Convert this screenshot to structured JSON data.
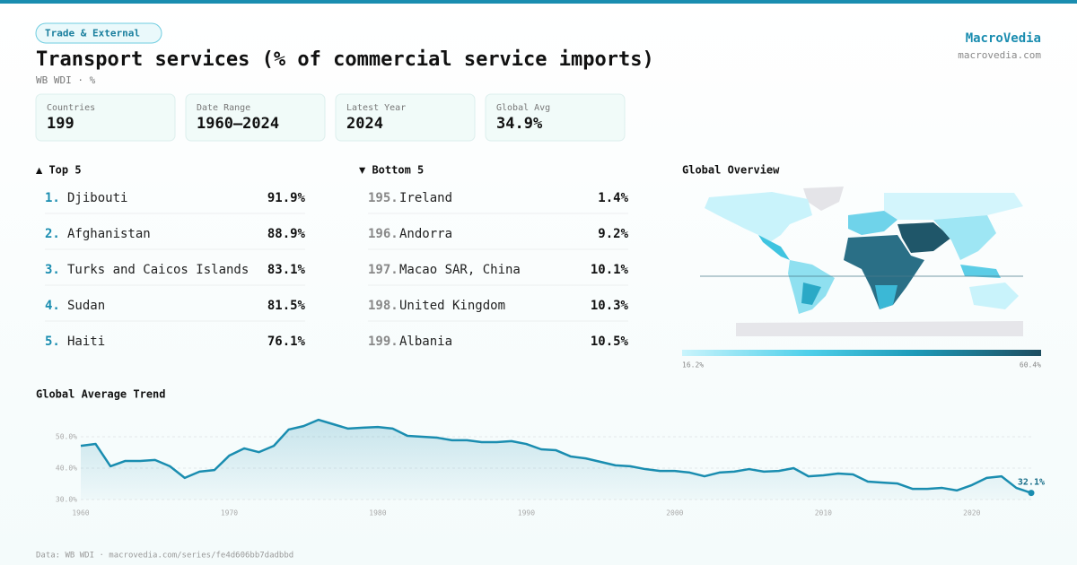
{
  "header": {
    "tag": "Trade & External",
    "title": "Transport services (% of commercial service imports)",
    "subtitle": "WB WDI · %",
    "brand": "MacroVedia",
    "site": "macrovedia.com"
  },
  "stats": [
    {
      "label": "Countries",
      "value": "199"
    },
    {
      "label": "Date Range",
      "value": "1960–2024"
    },
    {
      "label": "Latest Year",
      "value": "2024"
    },
    {
      "label": "Global Avg",
      "value": "34.9%"
    }
  ],
  "top": {
    "title": "▲ Top 5",
    "rows": [
      {
        "rank": "1.",
        "name": "Djibouti",
        "value": "91.9%"
      },
      {
        "rank": "2.",
        "name": "Afghanistan",
        "value": "88.9%"
      },
      {
        "rank": "3.",
        "name": "Turks and Caicos Islands",
        "value": "83.1%"
      },
      {
        "rank": "4.",
        "name": "Sudan",
        "value": "81.5%"
      },
      {
        "rank": "5.",
        "name": "Haiti",
        "value": "76.1%"
      }
    ]
  },
  "bottom": {
    "title": "▼ Bottom 5",
    "rows": [
      {
        "rank": "195.",
        "name": "Ireland",
        "value": "1.4%"
      },
      {
        "rank": "196.",
        "name": "Andorra",
        "value": "9.2%"
      },
      {
        "rank": "197.",
        "name": "Macao SAR, China",
        "value": "10.1%"
      },
      {
        "rank": "198.",
        "name": "United Kingdom",
        "value": "10.3%"
      },
      {
        "rank": "199.",
        "name": "Albania",
        "value": "10.5%"
      }
    ]
  },
  "map": {
    "title": "Global Overview",
    "legend_min": "16.2%",
    "legend_max": "60.4%"
  },
  "chart_data": {
    "type": "line",
    "title": "Global Average Trend",
    "color": "#1a8db0",
    "x": [
      1960,
      1961,
      1962,
      1963,
      1964,
      1965,
      1966,
      1967,
      1968,
      1969,
      1970,
      1971,
      1972,
      1973,
      1974,
      1975,
      1976,
      1977,
      1978,
      1979,
      1980,
      1981,
      1982,
      1983,
      1984,
      1985,
      1986,
      1987,
      1988,
      1989,
      1990,
      1991,
      1992,
      1993,
      1994,
      1995,
      1996,
      1997,
      1998,
      1999,
      2000,
      2001,
      2002,
      2003,
      2004,
      2005,
      2006,
      2007,
      2008,
      2009,
      2010,
      2011,
      2012,
      2013,
      2014,
      2015,
      2016,
      2017,
      2018,
      2019,
      2020,
      2021,
      2022,
      2023,
      2024
    ],
    "values": [
      47.1,
      47.7,
      40.6,
      42.3,
      42.3,
      42.6,
      40.6,
      36.9,
      38.9,
      39.4,
      44.0,
      46.3,
      45.1,
      47.1,
      52.3,
      53.4,
      55.4,
      54.0,
      52.6,
      52.9,
      53.1,
      52.6,
      50.3,
      50.0,
      49.7,
      48.9,
      48.9,
      48.3,
      48.3,
      48.6,
      47.7,
      46.0,
      45.7,
      43.7,
      43.1,
      42.0,
      40.9,
      40.6,
      39.7,
      39.1,
      39.1,
      38.6,
      37.4,
      38.6,
      38.9,
      39.7,
      38.9,
      39.1,
      40.0,
      37.4,
      37.7,
      38.3,
      38.0,
      35.7,
      35.4,
      35.1,
      33.4,
      33.4,
      33.7,
      32.9,
      34.6,
      36.9,
      37.4,
      33.7,
      32.1
    ],
    "value_labels": [
      null,
      null,
      null,
      null,
      null,
      null,
      null,
      null,
      null,
      null,
      null,
      null,
      null,
      null,
      null,
      null,
      null,
      null,
      null,
      null,
      null,
      null,
      null,
      null,
      null,
      null,
      null,
      null,
      null,
      null,
      null,
      null,
      null,
      null,
      null,
      null,
      null,
      null,
      null,
      null,
      null,
      null,
      null,
      null,
      null,
      null,
      null,
      null,
      null,
      null,
      null,
      null,
      null,
      null,
      null,
      null,
      null,
      null,
      null,
      null,
      null,
      null,
      null,
      null,
      "32.1%"
    ],
    "xlim": [
      1960,
      2024
    ],
    "xticks": [
      1960,
      1970,
      1980,
      1990,
      2000,
      2010,
      2020
    ],
    "ylim": [
      30,
      57
    ],
    "yticks": [
      {
        "value": 30,
        "label": "30.0%"
      },
      {
        "value": 40,
        "label": "40.0%"
      },
      {
        "value": 50,
        "label": "50.0%"
      }
    ],
    "grid": true
  },
  "footer": "Data: WB WDI · macrovedia.com/series/fe4d606bb7dadbbd"
}
